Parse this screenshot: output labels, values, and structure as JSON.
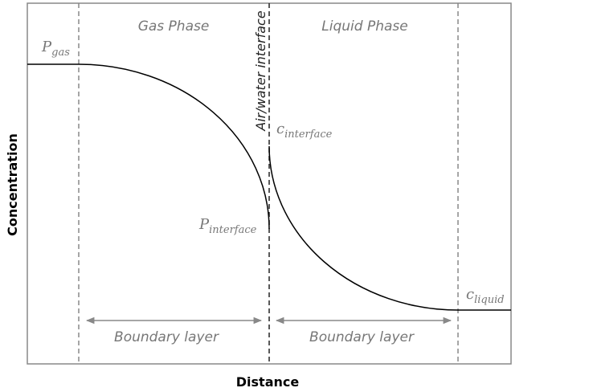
{
  "axes": {
    "x_label": "Distance",
    "y_label": "Concentration"
  },
  "regions": {
    "gas": "Gas Phase",
    "liquid": "Liquid Phase",
    "interface": "Air/water interface"
  },
  "boundary_layers": [
    "Boundary layer",
    "Boundary layer"
  ],
  "points": {
    "p_gas": {
      "symbol": "P",
      "subscript": "gas"
    },
    "p_interface": {
      "symbol": "P",
      "subscript": "interface"
    },
    "c_interface": {
      "symbol": "c",
      "subscript": "interface"
    },
    "c_liquid": {
      "symbol": "c",
      "subscript": "liquid"
    }
  }
}
